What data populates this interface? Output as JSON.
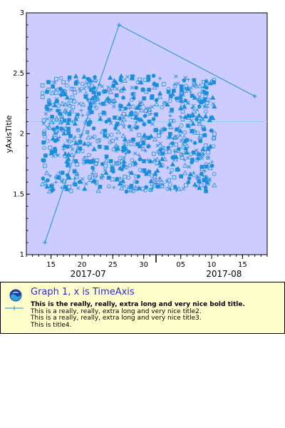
{
  "chart_data": {
    "type": "scatter",
    "title": "",
    "xlabel": "",
    "ylabel": "yAxisTitle",
    "ylim": [
      1,
      3
    ],
    "y_ticks": [
      "1",
      "1.5",
      "2",
      "2.5",
      "3"
    ],
    "xlim": [
      "2017-07-11",
      "2017-08-19"
    ],
    "x_tick_labels": [
      "15",
      "20",
      "25",
      "30",
      "05",
      "10",
      "15"
    ],
    "x_tick_dates": [
      "2017-07-15",
      "2017-07-20",
      "2017-07-25",
      "2017-07-30",
      "2017-08-05",
      "2017-08-10",
      "2017-08-15"
    ],
    "x_group_labels": [
      "2017-07",
      "2017-08"
    ],
    "x_group_dates": [
      "2017-07-21",
      "2017-08-12"
    ],
    "month_boundary": "2017-08-01",
    "background_color": "#ccccff",
    "series_color": "#1a8fd8",
    "line_series": {
      "points": [
        {
          "x": "2017-07-14",
          "y": 1.1
        },
        {
          "x": "2017-07-26",
          "y": 2.9
        },
        {
          "x": "2017-08-17",
          "y": 2.31
        }
      ]
    },
    "reference_y": 2.1,
    "scatter_cloud": {
      "x_range": [
        "2017-07-14",
        "2017-08-11"
      ],
      "y_range": [
        1.52,
        2.48
      ],
      "markers": [
        "circle",
        "filled-circle",
        "square",
        "filled-square",
        "triangle",
        "filled-triangle",
        "x",
        "plus"
      ]
    }
  },
  "legend": {
    "title": "Graph 1, x is TimeAxis",
    "series_lines": [
      "This is the really, really, extra long and very nice bold title.",
      "This is a really, really, extra long and very nice title2.",
      "This is a really, really, extra long and very nice title3.",
      "This is title4."
    ]
  }
}
